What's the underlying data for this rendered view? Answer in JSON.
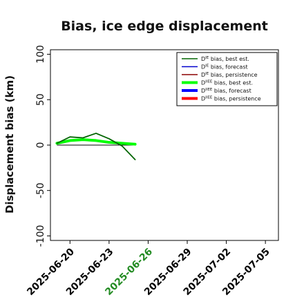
{
  "chart_data": {
    "type": "line",
    "title": "Bias, ice edge displacement",
    "xlabel": "",
    "ylabel": "Displacement bias (km)",
    "x_ticks": [
      "2025-06-20",
      "2025-06-23",
      "2025-06-26",
      "2025-06-29",
      "2025-07-02",
      "2025-07-05"
    ],
    "x_tick_colors": [
      "#000000",
      "#000000",
      "#228b22",
      "#000000",
      "#000000",
      "#000000"
    ],
    "y_ticks": [
      100,
      50,
      0,
      -50,
      -100
    ],
    "xlim": [
      "2025-06-18T12:00",
      "2025-07-06"
    ],
    "ylim": [
      -105,
      105
    ],
    "legend_position": "top-right",
    "series": [
      {
        "name": "D^IE bias, best est.",
        "color": "#006400",
        "width": 1.8,
        "x": [
          "2025-06-19",
          "2025-06-20",
          "2025-06-21",
          "2025-06-22",
          "2025-06-23",
          "2025-06-24",
          "2025-06-25"
        ],
        "y": [
          2,
          9,
          8,
          13,
          7,
          -1,
          -16
        ]
      },
      {
        "name": "D^IE bias, forecast",
        "color": "#0000cd",
        "width": 1.2,
        "x": [],
        "y": []
      },
      {
        "name": "D^IE bias, persistence",
        "color": "#8b0000",
        "width": 1.2,
        "x": [],
        "y": []
      },
      {
        "name": "D^IIEE bias, best est.",
        "color": "#00ff00",
        "width": 4,
        "x": [
          "2025-06-19",
          "2025-06-20",
          "2025-06-21",
          "2025-06-22",
          "2025-06-23",
          "2025-06-24",
          "2025-06-25"
        ],
        "y": [
          2,
          5,
          6,
          5,
          3,
          2,
          1
        ]
      },
      {
        "name": "D^IIEE bias, forecast",
        "color": "#0000ff",
        "width": 4,
        "x": [],
        "y": []
      },
      {
        "name": "D^IIEE bias, persistence",
        "color": "#ff0000",
        "width": 4,
        "x": [],
        "y": []
      }
    ],
    "reference_line": {
      "color": "#000000",
      "x": [
        "2025-06-19",
        "2025-06-25"
      ],
      "y": [
        0,
        0
      ]
    },
    "legend": [
      {
        "sym": "D",
        "sup": "IE",
        "rest": " bias, best est.",
        "color": "#006400",
        "width": 1.5
      },
      {
        "sym": "D",
        "sup": "IE",
        "rest": " bias, forecast",
        "color": "#0000cd",
        "width": 1.5
      },
      {
        "sym": "D",
        "sup": "IE",
        "rest": " bias, persistence",
        "color": "#8b0000",
        "width": 1.5
      },
      {
        "sym": "D",
        "sup": "IIEE",
        "rest": " bias, best est.",
        "color": "#00ff00",
        "width": 4
      },
      {
        "sym": "D",
        "sup": "IIEE",
        "rest": " bias, forecast",
        "color": "#0000ff",
        "width": 4
      },
      {
        "sym": "D",
        "sup": "IIEE",
        "rest": " bias, persistence",
        "color": "#ff0000",
        "width": 4
      }
    ]
  }
}
